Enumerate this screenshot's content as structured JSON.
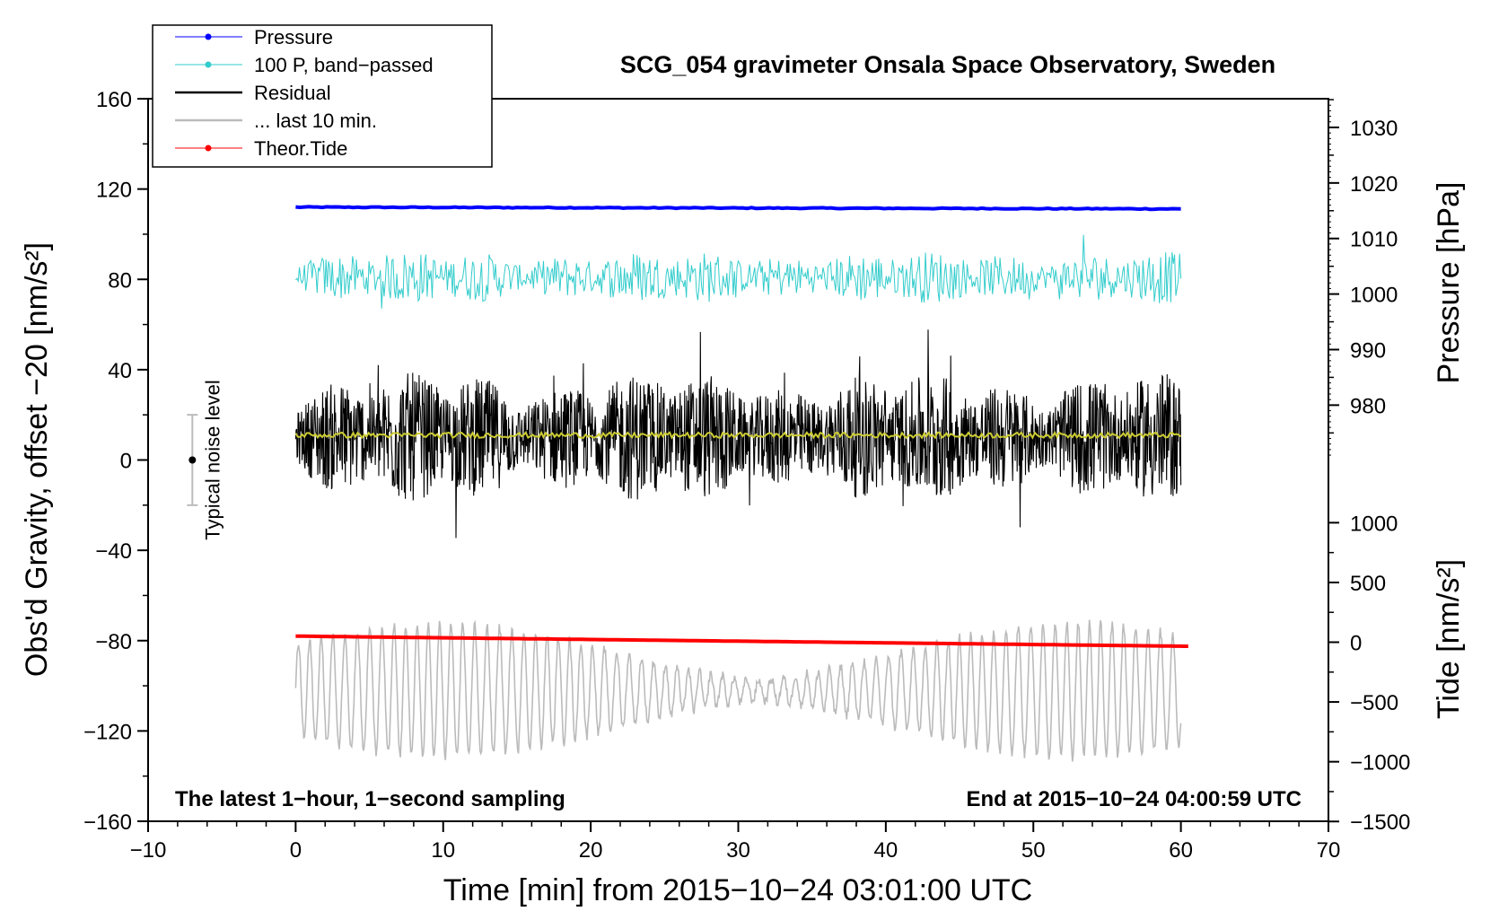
{
  "chart_data": {
    "type": "line",
    "title": "SCG_054 gravimeter Onsala Space Observatory, Sweden",
    "xlabel": "Time [min] from 2015−10−24 03:01:00 UTC",
    "ylabel": "Obs'd Gravity, offset −20 [nm/s²]",
    "ylabel_right_pressure": "Pressure [hPa]",
    "ylabel_right_tide": "Tide [nm/s²]",
    "xlim": [
      -10,
      70
    ],
    "ylim": [
      -160,
      160
    ],
    "xticks": [
      -10,
      0,
      10,
      20,
      30,
      40,
      50,
      60,
      70
    ],
    "xtick_labels": [
      "−10",
      "0",
      "10",
      "20",
      "30",
      "40",
      "50",
      "60",
      "70"
    ],
    "yticks": [
      -160,
      -120,
      -80,
      -40,
      0,
      40,
      80,
      120,
      160
    ],
    "ytick_labels": [
      "−160",
      "−120",
      "−80",
      "−40",
      "0",
      "40",
      "80",
      "120",
      "160"
    ],
    "pressure_axis": {
      "ticks": [
        980,
        990,
        1000,
        1010,
        1020,
        1030
      ],
      "tick_labels": [
        "980",
        "990",
        "1000",
        "1010",
        "1020",
        "1030"
      ],
      "map": {
        "hpa_ref": 1000,
        "gravity_at_ref": 73.5,
        "gravity_per_hpa": 2.46
      }
    },
    "tide_axis": {
      "ticks": [
        -1500,
        -1000,
        -500,
        0,
        500,
        1000
      ],
      "tick_labels": [
        "−1500",
        "−1000",
        "−500",
        "0",
        "500",
        "1000"
      ],
      "map": {
        "tide_ref": 0,
        "gravity_at_ref": -80.7,
        "gravity_per_unit": 0.05293
      }
    },
    "series": [
      {
        "name": "Pressure",
        "color": "#0000ff",
        "style": "thick-line",
        "x_range": [
          0,
          60
        ],
        "start": 112.0,
        "end": 111.2,
        "amplitude": 0.4
      },
      {
        "name": "100 P, band−passed",
        "color": "#33cccc",
        "style": "noise",
        "x_range": [
          0,
          60
        ],
        "center": 81,
        "amplitude": 7
      },
      {
        "name": "Residual",
        "color": "#000000",
        "style": "noise",
        "x_range": [
          0,
          60
        ],
        "center": 10,
        "amplitude": 17
      },
      {
        "name": "... last 10 min.",
        "color": "#bbbbbb",
        "style": "oscillation",
        "x_range": [
          0,
          60
        ],
        "center": -102,
        "amplitude": 22
      },
      {
        "name": "Theor.Tide",
        "color": "#ff0000",
        "style": "thick-line",
        "x_range": [
          0,
          60.5
        ],
        "start": -78.0,
        "end": -82.5,
        "amplitude": 0
      }
    ],
    "mean_line": {
      "color": "#cccc33",
      "center": 11,
      "amplitude": 1.2
    },
    "legend": {
      "placement": "top-left"
    },
    "noise_indicator": {
      "label": "Typical noise level",
      "x": -7,
      "y": 0,
      "half_range": 20
    },
    "annotations": {
      "bottom_left": "The latest 1−hour, 1−second sampling",
      "bottom_right": "End at 2015−10−24 04:00:59 UTC"
    }
  }
}
